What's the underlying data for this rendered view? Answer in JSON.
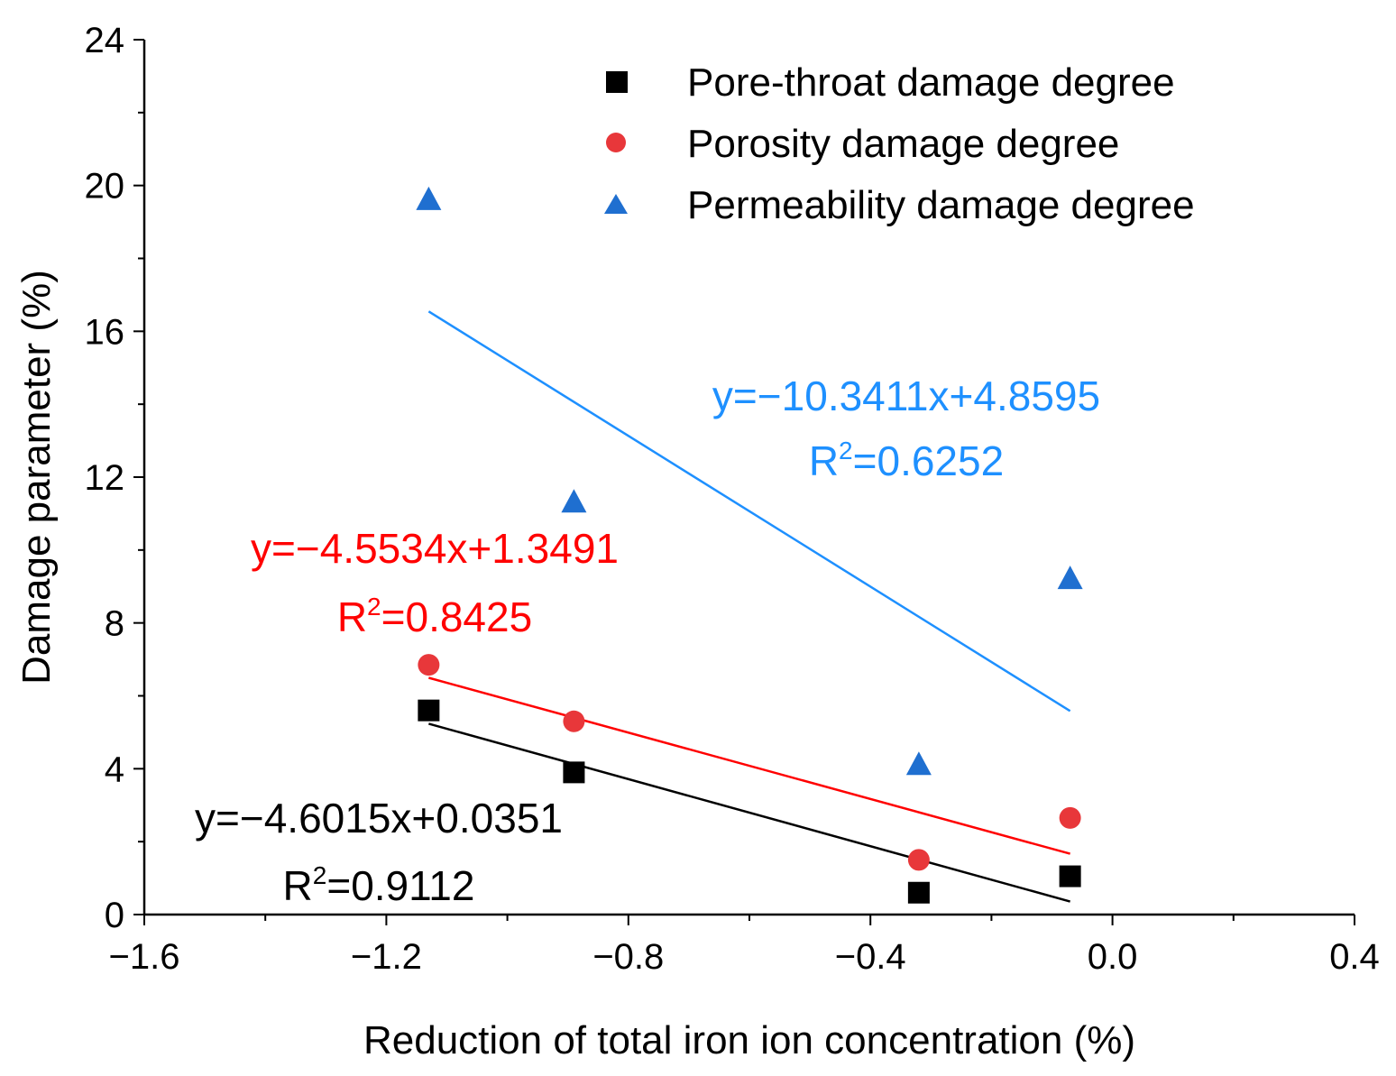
{
  "chart_data": {
    "type": "scatter",
    "title": "",
    "xlabel": "Reduction of total iron ion concentration (%)",
    "ylabel": "Damage parameter (%)",
    "xlim": [
      -1.6,
      0.4
    ],
    "ylim": [
      0,
      24
    ],
    "x_ticks": [
      -1.6,
      -1.2,
      -0.8,
      -0.4,
      0.0,
      0.4
    ],
    "x_tick_labels": [
      "−1.6",
      "−1.2",
      "−0.8",
      "−0.4",
      "0.0",
      "0.4"
    ],
    "y_ticks": [
      0,
      4,
      8,
      12,
      16,
      20,
      24
    ],
    "y_tick_labels": [
      "0",
      "4",
      "8",
      "12",
      "16",
      "20",
      "24"
    ],
    "grid": false,
    "legend_position": "top-right",
    "series": [
      {
        "name": "Pore-throat damage degree",
        "marker": "square",
        "color": "#000000",
        "x": [
          -1.13,
          -0.89,
          -0.32,
          -0.07
        ],
        "y": [
          5.6,
          3.9,
          0.6,
          1.05
        ],
        "fit": {
          "x_range": [
            -1.13,
            -0.07
          ],
          "slope": -4.6015,
          "intercept": 0.0351
        },
        "equation": "y=−4.6015x+0.0351",
        "r2_label": "R",
        "r2_sup": "2",
        "r2_value": "=0.9112"
      },
      {
        "name": "Porosity damage degree",
        "marker": "circle",
        "color": "#e8373a",
        "fit_color": "#ff0000",
        "x": [
          -1.13,
          -0.89,
          -0.32,
          -0.07
        ],
        "y": [
          6.85,
          5.3,
          1.5,
          2.65
        ],
        "fit": {
          "x_range": [
            -1.13,
            -0.07
          ],
          "slope": -4.5534,
          "intercept": 1.3491
        },
        "equation": "y=−4.5534x+1.3491",
        "r2_label": "R",
        "r2_sup": "2",
        "r2_value": "=0.8425"
      },
      {
        "name": "Permeability damage degree",
        "marker": "triangle",
        "color": "#1f6fd0",
        "fit_color": "#1e90ff",
        "x": [
          -1.13,
          -0.89,
          -0.32,
          -0.07
        ],
        "y": [
          19.6,
          11.3,
          4.1,
          9.2
        ],
        "fit": {
          "x_range": [
            -1.13,
            -0.07
          ],
          "slope": -10.3411,
          "intercept": 4.8595
        },
        "equation": "y=−10.3411x+4.8595",
        "r2_label": "R",
        "r2_sup": "2",
        "r2_value": "=0.6252"
      }
    ]
  }
}
